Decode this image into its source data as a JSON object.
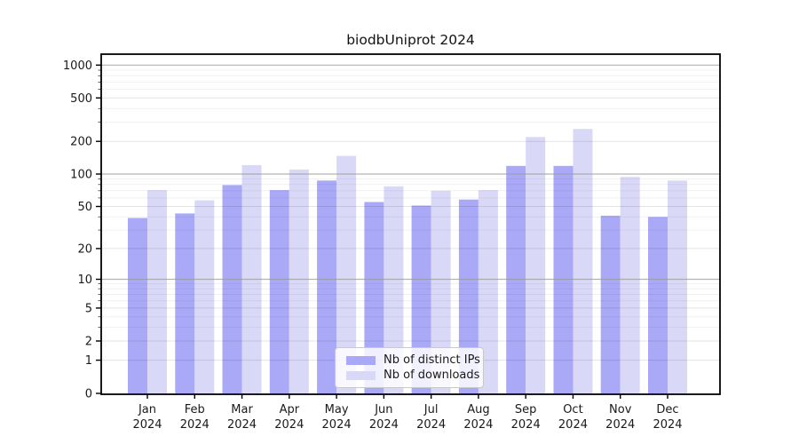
{
  "chart_data": {
    "type": "bar",
    "title": "biodbUniprot 2024",
    "categories": [
      "Jan 2024",
      "Feb 2024",
      "Mar 2024",
      "Apr 2024",
      "May 2024",
      "Jun 2024",
      "Jul 2024",
      "Aug 2024",
      "Sep 2024",
      "Oct 2024",
      "Nov 2024",
      "Dec 2024"
    ],
    "series": [
      {
        "name": "Nb of distinct IPs",
        "color": "#a9a9f7",
        "values": [
          39,
          43,
          79,
          71,
          87,
          55,
          51,
          58,
          119,
          119,
          41,
          40
        ]
      },
      {
        "name": "Nb of downloads",
        "color": "#d9d9f7",
        "values": [
          71,
          57,
          121,
          110,
          147,
          77,
          70,
          71,
          219,
          260,
          94,
          87
        ]
      }
    ],
    "xlabel": "",
    "ylabel": "",
    "y_tick_values": [
      0,
      1,
      2,
      5,
      10,
      20,
      50,
      100,
      200,
      500,
      1000
    ],
    "y_tick_labels": [
      "0",
      "1",
      "2",
      "5",
      "10",
      "20",
      "50",
      "100",
      "200",
      "500",
      "1000"
    ],
    "scale": "log1p",
    "ylim": [
      0,
      1200
    ],
    "grid": true,
    "legend_position": "lower center"
  },
  "colors": {
    "background": "#ffffff",
    "axis": "#000000",
    "grid_major": "#9a9a9a",
    "grid_minor": "#dddddd",
    "text": "#1a1a1a",
    "bar_distinct_ips": "#a9a9f7",
    "bar_downloads": "#d9d9f7"
  }
}
